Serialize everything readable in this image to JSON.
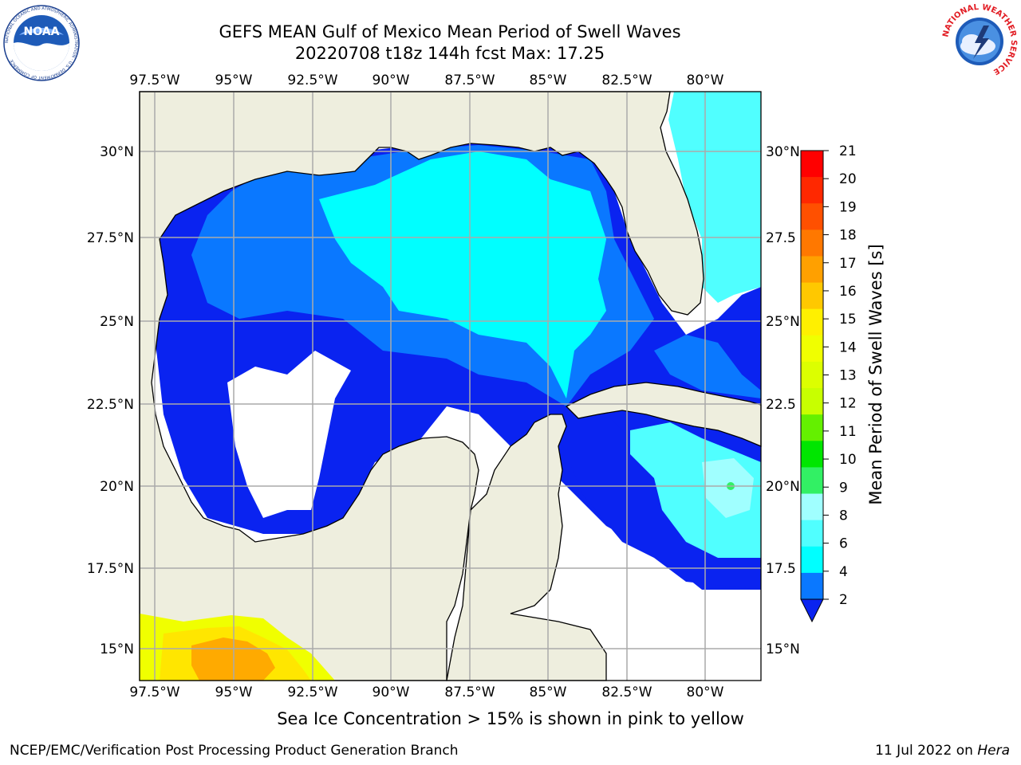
{
  "title": {
    "line1": "GEFS MEAN Gulf of Mexico Mean Period of Swell Waves",
    "line2": "20220708 t18z 144h fcst   Max: 17.25"
  },
  "map": {
    "lon_ticks": [
      "97.5°W",
      "95°W",
      "92.5°W",
      "90°W",
      "87.5°W",
      "85°W",
      "82.5°W",
      "80°W"
    ],
    "lat_ticks_left": [
      "30°N",
      "27.5°N",
      "25°N",
      "22.5°N",
      "20°N",
      "17.5°N",
      "15°N"
    ],
    "lat_ticks_right": [
      "30°N",
      "27.5",
      "25°N",
      "22.5",
      "20°N",
      "17.5",
      "15°N"
    ],
    "colors": {
      "land": "#EEEEDE",
      "swell_2_4": "#0A23F0",
      "swell_4_6": "#0A78FF",
      "swell_6_8": "#00FFFF",
      "swell_8_9": "#50FFFF",
      "swell_9_10": "#A0FFFF",
      "ice_yellow": "#F0FF00",
      "ice_gold": "#FFE600",
      "ice_orange": "#FFAA00"
    }
  },
  "colorbar": {
    "label": "Mean Period of Swell Waves [s]",
    "ticks": [
      "21",
      "20",
      "19",
      "18",
      "17",
      "16",
      "15",
      "14",
      "13",
      "12",
      "11",
      "10",
      "9",
      "8",
      "6",
      "4",
      "2"
    ],
    "colors": [
      "#FF0000",
      "#FF2800",
      "#FF5000",
      "#FF7800",
      "#FFA000",
      "#FFC800",
      "#FFF000",
      "#F0FF00",
      "#DCFF00",
      "#C8FF00",
      "#64F000",
      "#00E600",
      "#32F064",
      "#A0FFFF",
      "#50FFFF",
      "#00FFFF",
      "#0A78FF",
      "#0A23F0"
    ]
  },
  "ice_note": "Sea Ice Concentration > 15% is shown in pink to yellow",
  "footer": {
    "left": "NCEP/EMC/Verification Post Processing Product Generation Branch",
    "right_date": "11 Jul 2022 on ",
    "right_system": "Hera"
  },
  "logos": {
    "noaa_text": "NOAA",
    "noaa_ring": "NATIONAL OCEANIC AND ATMOSPHERIC ADMINISTRATION · U.S. DEPARTMENT OF COMMERCE",
    "nws_ring": "NATIONAL WEATHER SERVICE"
  }
}
